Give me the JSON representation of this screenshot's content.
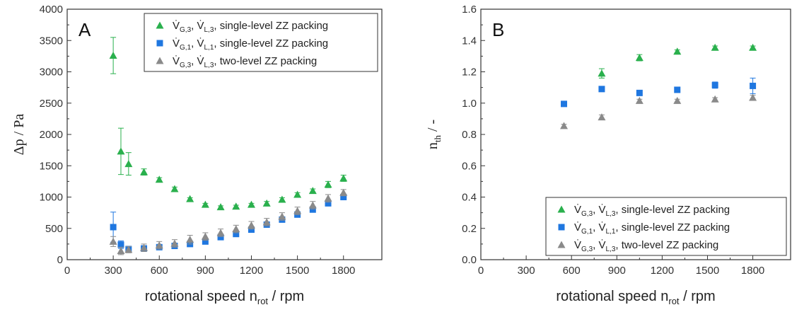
{
  "colors": {
    "green": "#2ab04d",
    "blue": "#1f77e0",
    "gray": "#8a8a8a"
  },
  "chart_data": [
    {
      "type": "scatter",
      "panel_label": "A",
      "xlabel": "rotational speed n",
      "xlabel_sub": "rot",
      "xlabel_unit": " / rpm",
      "ylabel": "Δp / Pa",
      "xlim": [
        0,
        2050
      ],
      "ylim": [
        0,
        4000
      ],
      "xticks": [
        0,
        300,
        600,
        900,
        1200,
        1500,
        1800
      ],
      "yticks": [
        0,
        500,
        1000,
        1500,
        2000,
        2500,
        3000,
        3500,
        4000
      ],
      "legend_position": "top-right",
      "series": [
        {
          "name": "V̇G,3, V̇L,3, single-level ZZ packing",
          "legend": {
            "a": "V̇",
            "a_sub": "G,3",
            "b": ", V̇",
            "b_sub": "L,3",
            "c": ", single-level ZZ packing"
          },
          "marker": "triangle",
          "color": "green",
          "x": [
            300,
            350,
            400,
            500,
            600,
            700,
            800,
            900,
            1000,
            1100,
            1200,
            1300,
            1400,
            1500,
            1600,
            1700,
            1800
          ],
          "y": [
            3260,
            1730,
            1530,
            1400,
            1280,
            1130,
            970,
            880,
            840,
            850,
            880,
            900,
            960,
            1040,
            1100,
            1200,
            1300
          ],
          "err": [
            290,
            370,
            180,
            50,
            30,
            30,
            20,
            20,
            20,
            20,
            20,
            30,
            30,
            30,
            30,
            50,
            50
          ]
        },
        {
          "name": "V̇G,1, V̇L,1, single-level ZZ packing",
          "legend": {
            "a": "V̇",
            "a_sub": "G,1",
            "b": ", V̇",
            "b_sub": "L,1",
            "c": ", single-level ZZ packing"
          },
          "marker": "square",
          "color": "blue",
          "x": [
            300,
            350,
            400,
            500,
            600,
            700,
            800,
            900,
            1000,
            1100,
            1200,
            1300,
            1400,
            1500,
            1600,
            1700,
            1800
          ],
          "y": [
            520,
            240,
            170,
            180,
            200,
            220,
            250,
            290,
            360,
            410,
            480,
            560,
            640,
            720,
            800,
            900,
            1000
          ],
          "err": [
            240,
            60,
            30,
            40,
            30,
            30,
            30,
            30,
            30,
            30,
            30,
            30,
            30,
            30,
            30,
            30,
            30
          ]
        },
        {
          "name": "V̇G,3, V̇L,3, two-level ZZ packing",
          "legend": {
            "a": "V̇",
            "a_sub": "G,3",
            "b": ", V̇",
            "b_sub": "L,3",
            "c": ", two-level ZZ packing"
          },
          "marker": "triangle",
          "color": "gray",
          "x": [
            300,
            350,
            400,
            500,
            600,
            700,
            800,
            900,
            1000,
            1100,
            1200,
            1300,
            1400,
            1500,
            1600,
            1700,
            1800
          ],
          "y": [
            290,
            140,
            160,
            190,
            230,
            260,
            320,
            370,
            430,
            490,
            550,
            600,
            690,
            780,
            870,
            980,
            1070
          ],
          "err": [
            80,
            60,
            50,
            60,
            60,
            60,
            70,
            60,
            60,
            60,
            60,
            60,
            60,
            60,
            60,
            60,
            50
          ]
        }
      ]
    },
    {
      "type": "scatter",
      "panel_label": "B",
      "xlabel": "rotational speed n",
      "xlabel_sub": "rot",
      "xlabel_unit": " / rpm",
      "ylabel": "n",
      "ylabel_sub": "th",
      "ylabel_unit": " / -",
      "xlim": [
        0,
        2050
      ],
      "ylim": [
        0,
        1.6
      ],
      "xticks": [
        0,
        300,
        600,
        900,
        1200,
        1500,
        1800
      ],
      "yticks": [
        0.0,
        0.2,
        0.4,
        0.6,
        0.8,
        1.0,
        1.2,
        1.4,
        1.6
      ],
      "ytick_labels": [
        "0.0",
        "0.2",
        "0.4",
        "0.6",
        "0.8",
        "1.0",
        "1.2",
        "1.4",
        "1.6"
      ],
      "legend_position": "bottom-right",
      "series": [
        {
          "name": "V̇G,3, V̇L,3, single-level ZZ packing",
          "legend": {
            "a": "V̇",
            "a_sub": "G,3",
            "b": ", V̇",
            "b_sub": "L,3",
            "c": ", single-level ZZ packing"
          },
          "marker": "triangle",
          "color": "green",
          "x": [
            800,
            1050,
            1300,
            1550,
            1800
          ],
          "y": [
            1.19,
            1.29,
            1.33,
            1.355,
            1.355
          ],
          "err": [
            0.03,
            0.02,
            0.01,
            0.01,
            0.01
          ]
        },
        {
          "name": "V̇G,1, V̇L,1, single-level ZZ packing",
          "legend": {
            "a": "V̇",
            "a_sub": "G,1",
            "b": ", V̇",
            "b_sub": "L,1",
            "c": ", single-level ZZ packing"
          },
          "marker": "square",
          "color": "blue",
          "x": [
            550,
            800,
            1050,
            1300,
            1550,
            1800
          ],
          "y": [
            0.995,
            1.09,
            1.065,
            1.085,
            1.115,
            1.11
          ],
          "err": [
            0.01,
            0.01,
            0.01,
            0.01,
            0.02,
            0.05
          ]
        },
        {
          "name": "V̇G,3, V̇L,3, two-level ZZ packing",
          "legend": {
            "a": "V̇",
            "a_sub": "G,3",
            "b": ", V̇",
            "b_sub": "L,3",
            "c": ", two-level ZZ packing"
          },
          "marker": "triangle",
          "color": "gray",
          "x": [
            550,
            800,
            1050,
            1300,
            1550,
            1800
          ],
          "y": [
            0.855,
            0.91,
            1.015,
            1.015,
            1.025,
            1.035
          ],
          "err": [
            0.01,
            0.015,
            0.01,
            0.01,
            0.01,
            0.015
          ]
        }
      ]
    }
  ]
}
